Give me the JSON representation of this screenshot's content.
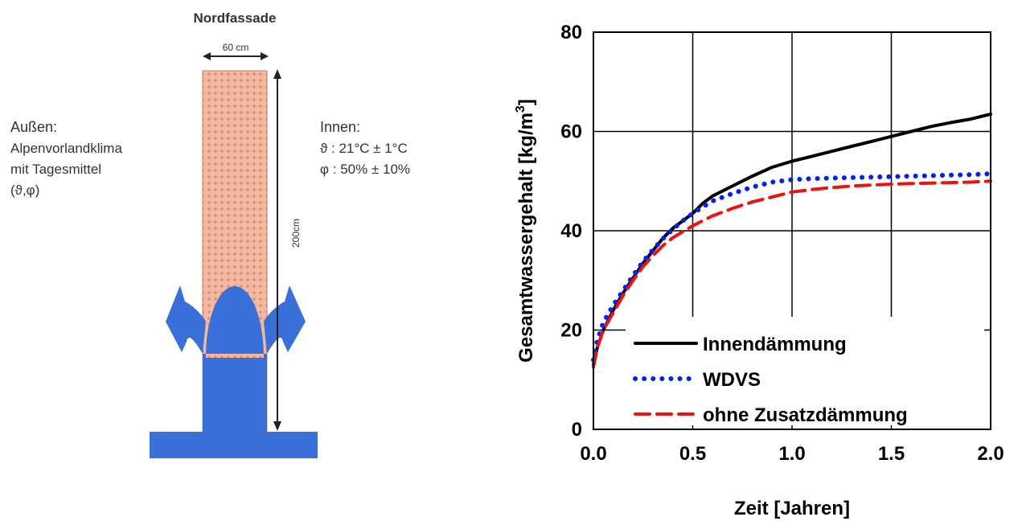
{
  "diagram": {
    "title": "Nordfassade",
    "width_label": "60 cm",
    "height_label": "200cm",
    "outside": {
      "heading": "Außen:",
      "lines": [
        "Alpenvorlandklima",
        "mit Tagesmittel",
        "(ϑ,φ)"
      ]
    },
    "inside": {
      "heading": "Innen:",
      "lines": [
        "ϑ : 21°C ± 1°C",
        "φ : 50% ± 10%"
      ]
    },
    "colors": {
      "wall": "#f2b9a0",
      "wall_dots": "#d98a78",
      "water": "#3a6fd8"
    }
  },
  "chart_data": {
    "type": "line",
    "xlabel": "Zeit [Jahren]",
    "ylabel": "Gesamtwassergehalt [kg/m³]",
    "ylabel_main": "Gesamtwassergehalt [kg/m",
    "ylabel_sup": "3",
    "ylabel_end": "]",
    "xlim": [
      0,
      2
    ],
    "ylim": [
      0,
      80
    ],
    "xticks": [
      "0.0",
      "0.5",
      "1.0",
      "1.5",
      "2.0"
    ],
    "yticks": [
      "0",
      "20",
      "40",
      "60",
      "80"
    ],
    "grid": true,
    "legend_position": "bottom-right",
    "series": [
      {
        "name": "Innendämmung",
        "style": "solid",
        "color": "#000000",
        "x": [
          0,
          0.02,
          0.05,
          0.1,
          0.15,
          0.2,
          0.25,
          0.3,
          0.35,
          0.4,
          0.45,
          0.5,
          0.55,
          0.6,
          0.7,
          0.8,
          0.9,
          1.0,
          1.1,
          1.2,
          1.3,
          1.4,
          1.5,
          1.6,
          1.7,
          1.8,
          1.9,
          2.0
        ],
        "y": [
          13,
          16.5,
          20,
          24,
          27.5,
          30.5,
          33.5,
          36,
          38.5,
          40.5,
          42,
          43.5,
          45.5,
          47,
          49,
          51,
          52.8,
          54,
          55,
          56,
          57,
          58,
          59,
          60,
          61,
          61.8,
          62.5,
          63.5
        ]
      },
      {
        "name": "WDVS",
        "style": "dotted",
        "color": "#0022ee",
        "x": [
          0,
          0.02,
          0.05,
          0.1,
          0.15,
          0.2,
          0.25,
          0.3,
          0.35,
          0.4,
          0.45,
          0.5,
          0.55,
          0.6,
          0.7,
          0.8,
          0.9,
          1.0,
          1.1,
          1.2,
          1.3,
          1.4,
          1.5,
          1.6,
          1.7,
          1.8,
          1.9,
          2.0
        ],
        "y": [
          14,
          18,
          21.5,
          25,
          28,
          31,
          33.8,
          36.2,
          38.4,
          40.3,
          42,
          43.5,
          44.8,
          46,
          47.5,
          48.8,
          49.8,
          50.3,
          50.5,
          50.6,
          50.7,
          50.8,
          50.9,
          51,
          51.1,
          51.2,
          51.3,
          51.5
        ]
      },
      {
        "name": "ohne Zusatzdämmung",
        "style": "dashed",
        "color": "#ee1111",
        "x": [
          0,
          0.02,
          0.05,
          0.1,
          0.15,
          0.2,
          0.25,
          0.3,
          0.35,
          0.4,
          0.45,
          0.5,
          0.55,
          0.6,
          0.7,
          0.8,
          0.9,
          1.0,
          1.1,
          1.2,
          1.3,
          1.4,
          1.5,
          1.6,
          1.7,
          1.8,
          1.9,
          2.0
        ],
        "y": [
          12.5,
          16.5,
          20,
          23.5,
          27,
          30,
          32.8,
          35,
          37,
          38.6,
          39.8,
          41,
          42,
          43,
          44.5,
          45.8,
          46.8,
          47.8,
          48.3,
          48.7,
          49,
          49.2,
          49.4,
          49.5,
          49.6,
          49.7,
          49.8,
          50
        ]
      }
    ]
  }
}
